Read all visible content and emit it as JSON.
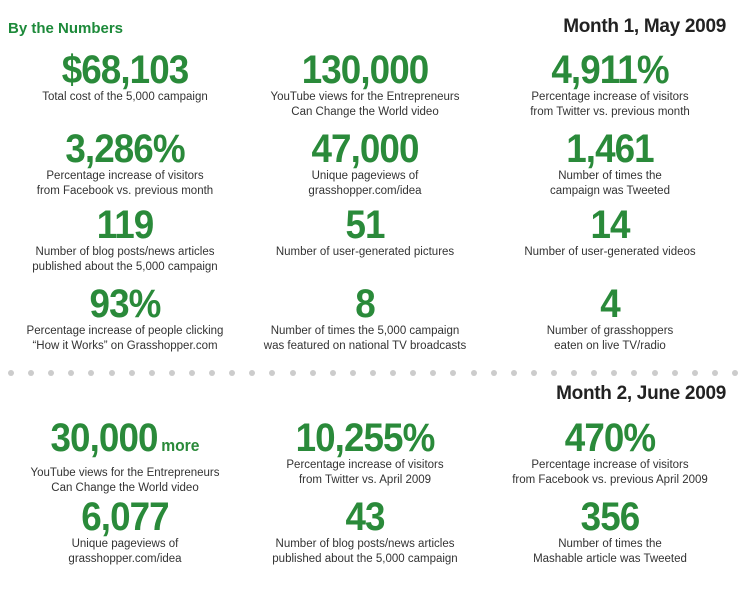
{
  "header": {
    "title": "By the Numbers"
  },
  "month1": {
    "label": "Month 1, May 2009",
    "stats": [
      {
        "value": "$68,103",
        "desc": "Total cost of the 5,000 campaign"
      },
      {
        "value": "130,000",
        "desc": "YouTube views for the Entrepreneurs\nCan Change the World video"
      },
      {
        "value": "4,911%",
        "desc": "Percentage increase  of visitors\nfrom Twitter vs. previous month"
      },
      {
        "value": "3,286%",
        "desc": "Percentage increase  of visitors\nfrom Facebook vs. previous month"
      },
      {
        "value": "47,000",
        "desc": "Unique pageviews of\ngrasshopper.com/idea"
      },
      {
        "value": "1,461",
        "desc": "Number of times the\ncampaign was Tweeted"
      },
      {
        "value": "119",
        "desc": "Number of blog posts/news articles\npublished about the 5,000 campaign"
      },
      {
        "value": "51",
        "desc": "Number of user-generated pictures"
      },
      {
        "value": "14",
        "desc": "Number of user-generated videos"
      },
      {
        "value": "93%",
        "desc": "Percentage increase of people clicking\n“How it Works” on Grasshopper.com"
      },
      {
        "value": "8",
        "desc": "Number of times the 5,000 campaign\nwas featured on national TV broadcasts"
      },
      {
        "value": "4",
        "desc": "Number of grasshoppers\neaten on live TV/radio"
      }
    ]
  },
  "month2": {
    "label": "Month 2, June 2009",
    "stats": [
      {
        "value": "30,000",
        "suffix": "more",
        "desc": "YouTube views for the Entrepreneurs\nCan Change the World video"
      },
      {
        "value": "10,255%",
        "desc": "Percentage increase  of visitors\nfrom Twitter vs. April 2009"
      },
      {
        "value": "470%",
        "desc": "Percentage increase  of visitors\nfrom Facebook vs. previous April 2009"
      },
      {
        "value": "6,077",
        "desc": "Unique pageviews of\ngrasshopper.com/idea"
      },
      {
        "value": "43",
        "desc": "Number of blog posts/news articles\npublished about the 5,000 campaign"
      },
      {
        "value": "356",
        "desc": "Number of times the\nMashable article was Tweeted"
      }
    ]
  },
  "colors": {
    "accent_green": "#2a8a3a",
    "header_green": "#1d8a3a",
    "text": "#333333",
    "divider": "#cccccc"
  }
}
